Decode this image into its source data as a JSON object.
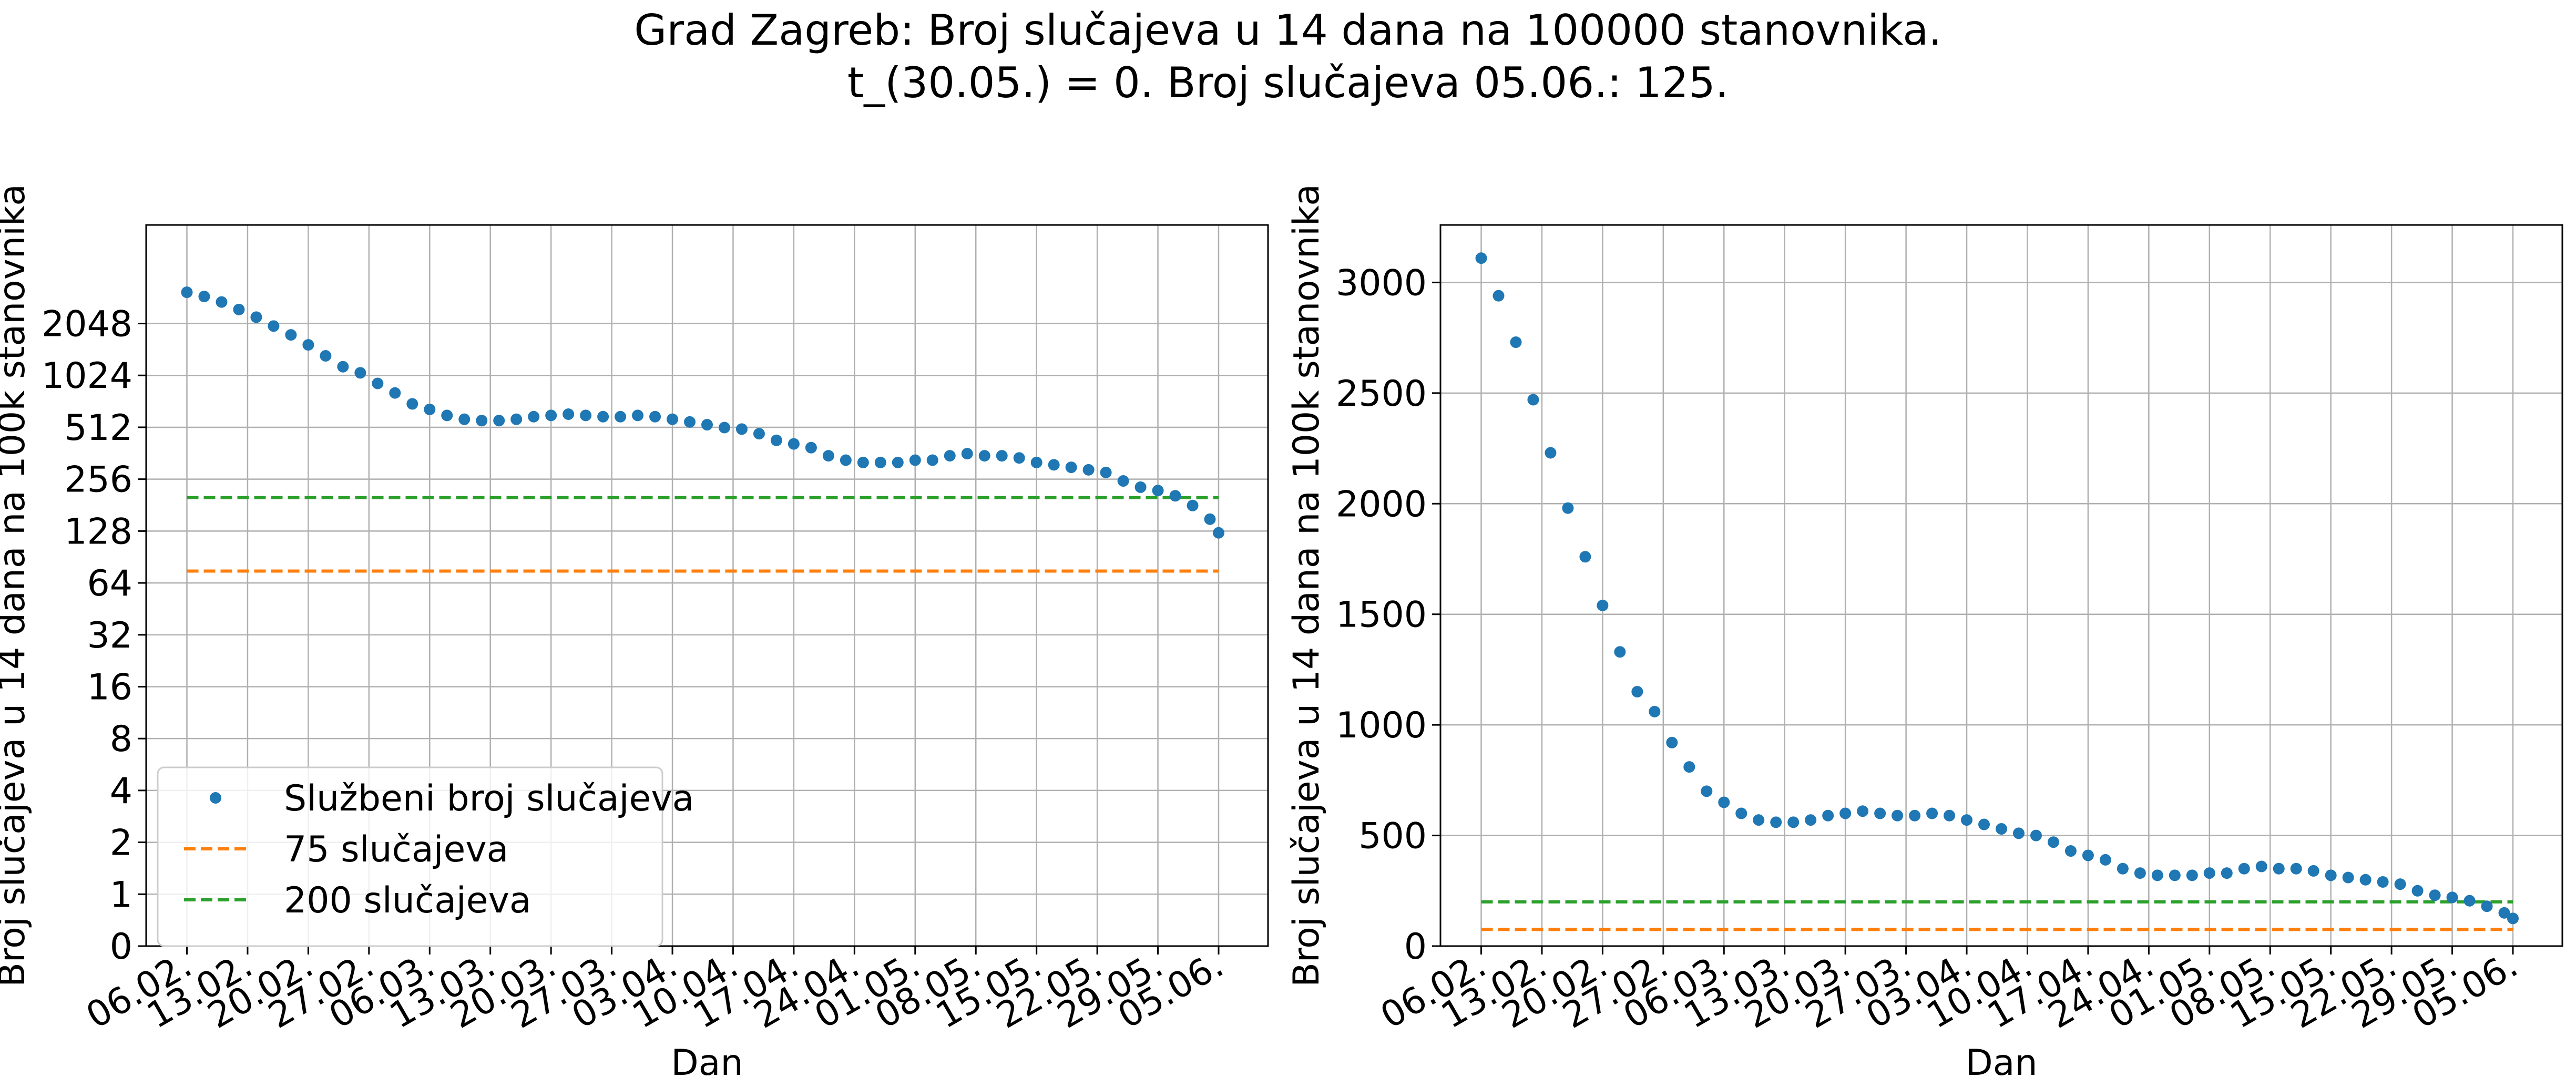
{
  "figure": {
    "title_line1": "Grad Zagreb: Broj slučajeva u 14 dana na 100000 stanovnika.",
    "title_line2": "t_(30.05.) = 0. Broj slučajeva 05.06.: 125."
  },
  "colors": {
    "official": "#1f77b4",
    "line75": "#ff7f0e",
    "line200": "#2ca02c",
    "grid": "#b0b0b0"
  },
  "chart_data": [
    {
      "type": "scatter",
      "panel": "left",
      "yscale": "log2",
      "title": "",
      "xlabel": "Dan",
      "ylabel": "Broj slučajeva u 14 dana na 100k stanovnika",
      "x_ticks": [
        "06.02.",
        "13.02.",
        "20.02.",
        "27.02.",
        "06.03.",
        "13.03.",
        "20.03.",
        "27.03.",
        "03.04.",
        "10.04.",
        "17.04.",
        "24.04.",
        "01.05.",
        "08.05.",
        "15.05.",
        "22.05.",
        "29.05.",
        "05.06."
      ],
      "y_ticks": [
        0,
        1,
        2,
        4,
        8,
        16,
        32,
        64,
        128,
        256,
        512,
        1024,
        2048
      ],
      "grid": true,
      "legend": {
        "position": "lower-left",
        "entries": [
          "Službeni broj slučajeva",
          "75 slučajeva",
          "200 slučajeva"
        ]
      }
    },
    {
      "type": "scatter",
      "panel": "right",
      "yscale": "linear",
      "title": "",
      "xlabel": "Dan",
      "ylabel": "Broj slučajeva u 14 dana na 100k stanovnika",
      "ylim": [
        0,
        3260
      ],
      "x_ticks": [
        "06.02.",
        "13.02.",
        "20.02.",
        "27.02.",
        "06.03.",
        "13.03.",
        "20.03.",
        "27.03.",
        "03.04.",
        "10.04.",
        "17.04.",
        "24.04.",
        "01.05.",
        "08.05.",
        "15.05.",
        "22.05.",
        "29.05.",
        "05.06."
      ],
      "y_ticks": [
        0,
        500,
        1000,
        1500,
        2000,
        2500,
        3000
      ],
      "grid": true
    }
  ],
  "series": {
    "dates": [
      "06.02.",
      "08.02.",
      "10.02.",
      "12.02.",
      "14.02.",
      "16.02.",
      "18.02.",
      "20.02.",
      "22.02.",
      "24.02.",
      "26.02.",
      "28.02.",
      "02.03.",
      "04.03.",
      "06.03.",
      "08.03.",
      "10.03.",
      "12.03.",
      "14.03.",
      "16.03.",
      "18.03.",
      "20.03.",
      "22.03.",
      "24.03.",
      "26.03.",
      "28.03.",
      "30.03.",
      "01.04.",
      "03.04.",
      "05.04.",
      "07.04.",
      "09.04.",
      "11.04.",
      "13.04.",
      "15.04.",
      "17.04.",
      "19.04.",
      "21.04.",
      "23.04.",
      "25.04.",
      "27.04.",
      "29.04.",
      "01.05.",
      "03.05.",
      "05.05.",
      "07.05.",
      "09.05.",
      "11.05.",
      "13.05.",
      "15.05.",
      "17.05.",
      "19.05.",
      "21.05.",
      "23.05.",
      "25.05.",
      "27.05.",
      "29.05.",
      "31.05.",
      "02.06.",
      "04.06.",
      "05.06."
    ],
    "official_name": "Službeni broj slučajeva",
    "official": [
      3110,
      2940,
      2730,
      2470,
      2230,
      1980,
      1760,
      1540,
      1330,
      1150,
      1060,
      920,
      810,
      700,
      650,
      600,
      570,
      560,
      560,
      570,
      590,
      600,
      610,
      600,
      590,
      590,
      600,
      590,
      570,
      550,
      530,
      510,
      500,
      470,
      430,
      410,
      390,
      350,
      330,
      320,
      320,
      320,
      330,
      330,
      350,
      360,
      350,
      350,
      340,
      320,
      310,
      300,
      290,
      280,
      250,
      230,
      220,
      205,
      180,
      150,
      125
    ],
    "line75_name": "75 slučajeva",
    "line75": 75,
    "line200_name": "200 slučajeva",
    "line200": 200
  }
}
